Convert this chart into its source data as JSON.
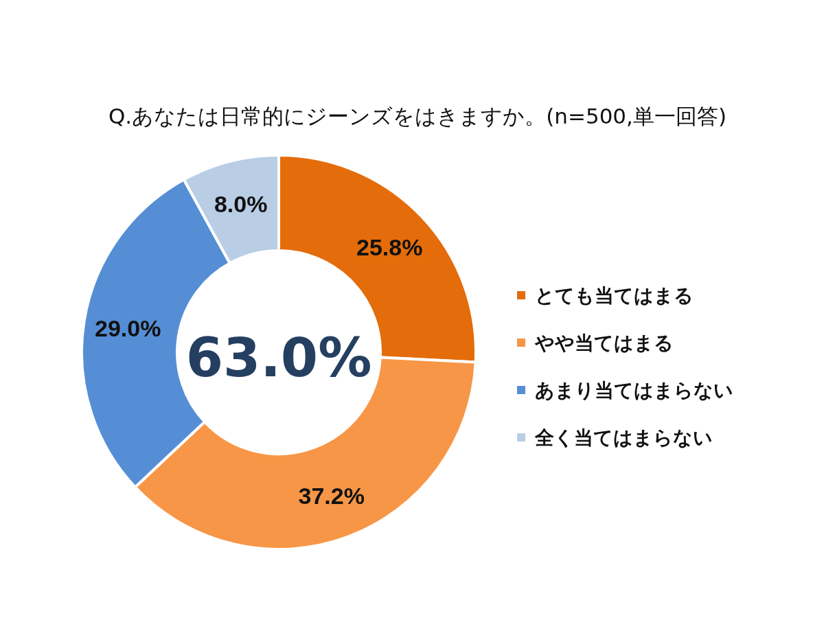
{
  "chart_data": {
    "type": "donut",
    "title": "Q.あなたは日常的にジーンズをはきますか。(n=500,単一回答)",
    "categories": [
      "とても当てはまる",
      "やや当てはまる",
      "あまり当てはまらない",
      "全く当てはまらない"
    ],
    "values": [
      25.8,
      37.2,
      29.0,
      8.0
    ],
    "colors": [
      "#e46c0a",
      "#f79646",
      "#558ed5",
      "#b9cde5"
    ],
    "value_labels": [
      "25.8%",
      "37.2%",
      "29.0%",
      "8.0%"
    ],
    "legend": "right",
    "annotations": [
      "63.0%"
    ]
  }
}
